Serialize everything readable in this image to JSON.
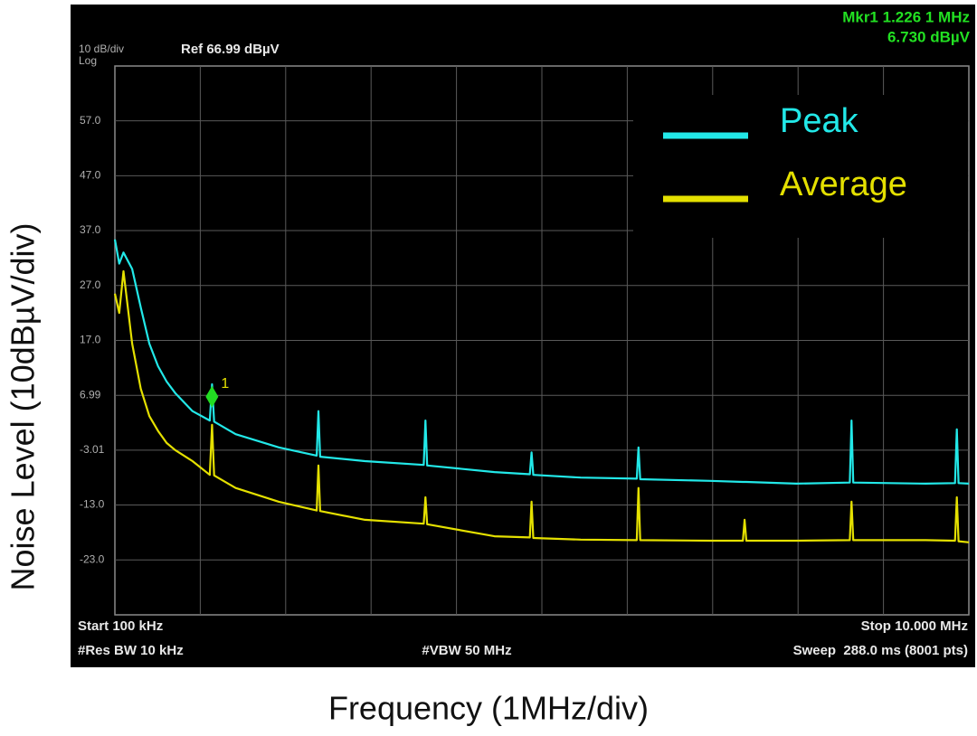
{
  "chart_data": {
    "type": "line",
    "scale_label": "10 dB/div",
    "scale_type": "Log",
    "reference": "Ref 66.99 dBµV",
    "marker_readout": [
      "Mkr1 1.226 1 MHz",
      "6.730 dBµV"
    ],
    "marker": {
      "label": "1",
      "x": 1.226,
      "y": 6.73,
      "color": "#22dd22"
    },
    "footer_left": [
      "Start 100 kHz",
      "#Res BW 10 kHz"
    ],
    "footer_center": "#VBW 50 MHz",
    "footer_right": [
      "Stop 10.000 MHz",
      "Sweep  288.0 ms (8001 pts)"
    ],
    "x_label": "Frequency (1MHz/div)",
    "y_label": "Noise Level (10dBµV/div)",
    "xlim": [
      0.1,
      10
    ],
    "ylim": [
      -33.01,
      66.99
    ],
    "yticks": [
      {
        "value": 57,
        "label": "57.0"
      },
      {
        "value": 47,
        "label": "47.0"
      },
      {
        "value": 37,
        "label": "37.0"
      },
      {
        "value": 27,
        "label": "27.0"
      },
      {
        "value": 17,
        "label": "17.0"
      },
      6.99,
      -3.01,
      {
        "value": -13,
        "label": "-13.0"
      },
      {
        "value": -23,
        "label": "-23.0"
      }
    ],
    "grid": true,
    "legend": "top-right",
    "x": [
      0.1,
      0.15,
      0.2,
      0.3,
      0.4,
      0.5,
      0.6,
      0.7,
      0.8,
      1.0,
      1.2,
      1.226,
      1.25,
      1.5,
      2.0,
      2.44,
      2.46,
      2.48,
      3.0,
      3.68,
      3.7,
      3.72,
      4.5,
      4.91,
      4.93,
      4.95,
      5.5,
      6.15,
      6.17,
      6.19,
      7.0,
      7.38,
      7.4,
      7.42,
      8.0,
      8.62,
      8.64,
      8.66,
      9.5,
      9.84,
      9.86,
      9.88,
      10.0
    ],
    "series": [
      {
        "name": "Peak",
        "color": "#22e8e8",
        "values": [
          35.4,
          31,
          33,
          30,
          23,
          16.4,
          12.3,
          9.5,
          7.4,
          4.1,
          2.4,
          9.0,
          2.2,
          -0.1,
          -2.5,
          -4.0,
          4.1,
          -4.2,
          -5.0,
          -5.7,
          2.4,
          -5.8,
          -7.0,
          -7.4,
          -3.4,
          -7.5,
          -8.0,
          -8.2,
          -2.5,
          -8.3,
          -8.6,
          -8.8,
          -8.8,
          -8.8,
          -9.1,
          -8.9,
          2.4,
          -8.9,
          -9.1,
          -9.0,
          0.8,
          -9.0,
          -9.1
        ]
      },
      {
        "name": "Average",
        "color": "#e4e000",
        "values": [
          25.5,
          22,
          29.6,
          16.4,
          8.2,
          3.2,
          0.5,
          -1.7,
          -3.0,
          -5.0,
          -7.5,
          1.6,
          -7.6,
          -9.9,
          -12.4,
          -14.0,
          -5.8,
          -14.1,
          -15.7,
          -16.4,
          -11.6,
          -16.5,
          -18.7,
          -18.9,
          -12.4,
          -19.0,
          -19.3,
          -19.4,
          -9.9,
          -19.4,
          -19.5,
          -19.5,
          -15.7,
          -19.5,
          -19.5,
          -19.4,
          -12.4,
          -19.4,
          -19.4,
          -19.5,
          -11.6,
          -19.6,
          -19.8
        ]
      }
    ]
  }
}
